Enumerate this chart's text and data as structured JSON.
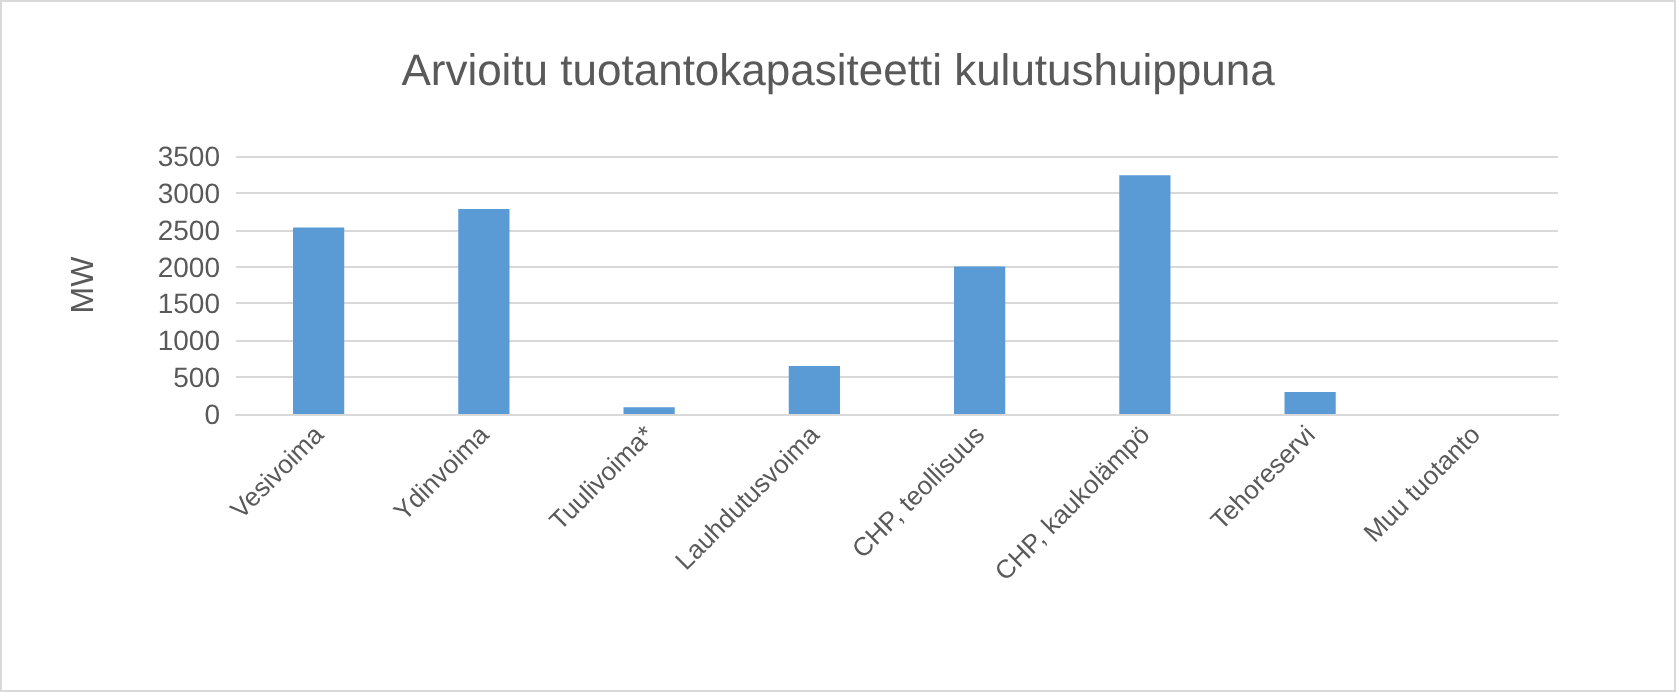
{
  "chart_data": {
    "type": "bar",
    "title": "Arvioitu tuotantokapasiteetti kulutushuippuna",
    "ylabel": "MW",
    "categories": [
      "Vesivoima",
      "Ydinvoima",
      "Tuulivoima*",
      "Lauhdutusvoima",
      "CHP, teollisuus",
      "CHP, kaukolämpö",
      "Tehoreservi",
      "Muu tuotanto"
    ],
    "values": [
      2530,
      2780,
      90,
      650,
      2000,
      3240,
      300,
      0
    ],
    "color": "#5b9bd5",
    "ylim": [
      0,
      3500
    ],
    "yticks": [
      0,
      500,
      1000,
      1500,
      2000,
      2500,
      3000,
      3500
    ],
    "grid": "y"
  }
}
